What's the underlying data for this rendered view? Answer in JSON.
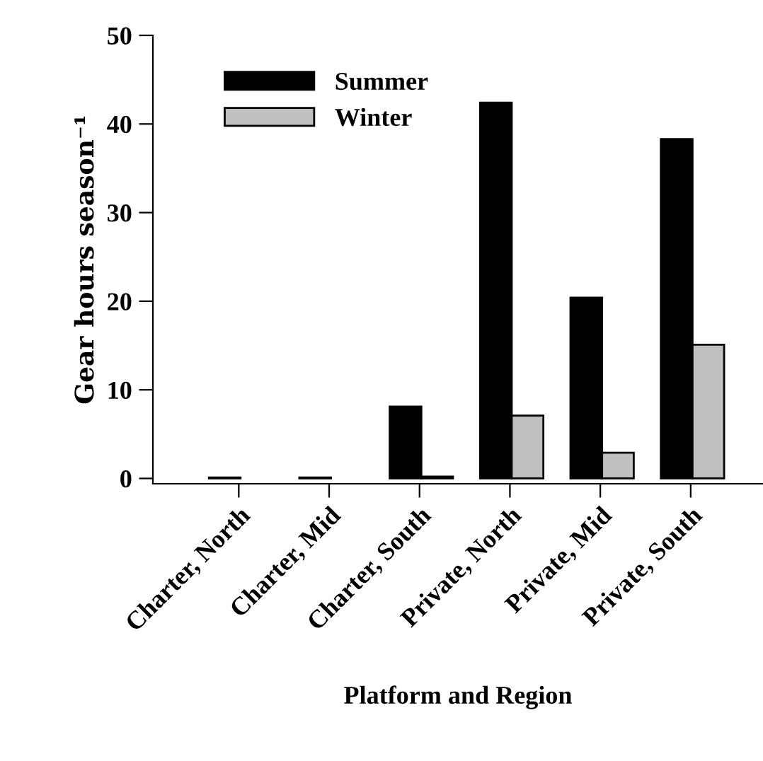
{
  "chart_data": {
    "type": "bar",
    "xlabel": "Platform and Region",
    "ylabel": "Gear hours season⁻¹",
    "categories": [
      "Charter, North",
      "Charter, Mid",
      "Charter, South",
      "Private, North",
      "Private, Mid",
      "Private, South"
    ],
    "series": [
      {
        "name": "Summer",
        "color": "#000000",
        "values": [
          0.1,
          0.1,
          8.1,
          42.4,
          20.4,
          38.3
        ]
      },
      {
        "name": "Winter",
        "color": "#c0c0c0",
        "values": [
          null,
          null,
          0.2,
          7.1,
          2.9,
          15.1
        ]
      }
    ],
    "ylim": [
      -0.6,
      50
    ],
    "yticks": [
      0,
      10,
      20,
      30,
      40,
      50
    ],
    "grid": false,
    "legend": "top left"
  }
}
